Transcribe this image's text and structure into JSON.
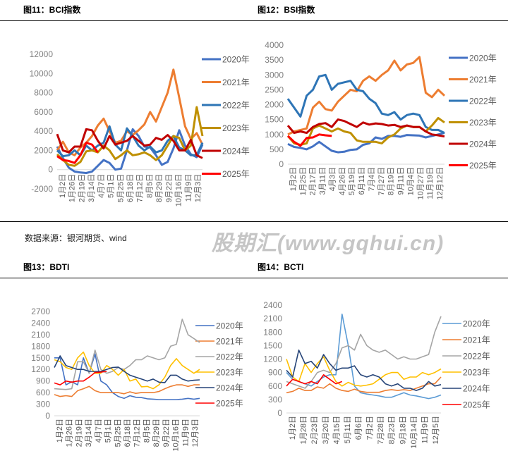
{
  "source_note": "数据来源：银河期货、wind",
  "watermark": "股期汇(www.gqhui.cn)",
  "chart_data": [
    {
      "type": "line",
      "title": "图11：BCI指数",
      "ylim": [
        -2000,
        12000
      ],
      "yticks": [
        -2000,
        0,
        2000,
        4000,
        6000,
        8000,
        10000,
        12000
      ],
      "xticks": [
        "1月2日",
        "1月26日",
        "2月19日",
        "3月14日",
        "4月7日",
        "5月1日",
        "5月25日",
        "6月18日",
        "7月12日",
        "8月5日",
        "8月29日",
        "9月22日",
        "10月16日",
        "11月9日",
        "12月3日"
      ],
      "legend": "right",
      "series": [
        {
          "name": "2020年",
          "color": "#4472C4",
          "values": [
            2400,
            1200,
            200,
            -200,
            -300,
            -350,
            -200,
            400,
            1000,
            700,
            0,
            100,
            2000,
            4200,
            3500,
            2400,
            2300,
            1500,
            500,
            800,
            2200,
            4100,
            2500,
            1600,
            1300,
            2600
          ]
        },
        {
          "name": "2021年",
          "color": "#ED7D31",
          "values": [
            2000,
            2900,
            1800,
            1500,
            2300,
            2800,
            3500,
            4600,
            5300,
            4000,
            2800,
            3000,
            4000,
            3600,
            4100,
            4700,
            6000,
            5000,
            6500,
            8000,
            10400,
            7500,
            4500,
            3200,
            3800,
            2600
          ]
        },
        {
          "name": "2022年",
          "color": "#2E75B6",
          "values": [
            2000,
            1400,
            1500,
            2000,
            1500,
            2500,
            2000,
            2500,
            2800,
            4500,
            2600,
            2000,
            4300,
            3500,
            2500,
            2000,
            2400,
            1800,
            2000,
            3000,
            3500,
            2300,
            2000,
            1500,
            1500,
            2800
          ]
        },
        {
          "name": "2023年",
          "color": "#BF9000",
          "values": [
            1600,
            1000,
            500,
            400,
            800,
            1900,
            2000,
            1800,
            2500,
            2000,
            1100,
            1500,
            2000,
            1500,
            1600,
            1800,
            1500,
            1000,
            1500,
            2500,
            3500,
            3300,
            2000,
            2500,
            6500,
            3500
          ]
        },
        {
          "name": "2024年",
          "color": "#C00000",
          "values": [
            3700,
            2000,
            1800,
            2400,
            2400,
            4200,
            4100,
            3000,
            2200,
            3500,
            2600,
            2800,
            3000,
            3500,
            3000,
            2500,
            2600,
            3300,
            3100,
            3600,
            3000,
            2000,
            2000,
            3100,
            1500,
            1200
          ]
        },
        {
          "name": "2025年",
          "color": "#FF0000",
          "values": [
            1400,
            1000,
            900,
            700,
            1500,
            2800,
            2600,
            1800
          ]
        }
      ]
    },
    {
      "type": "line",
      "title": "图12：BSI指数",
      "ylim": [
        0,
        4000
      ],
      "yticks": [
        0,
        500,
        1000,
        1500,
        2000,
        2500,
        3000,
        3500,
        4000
      ],
      "xticks": [
        "1月2日",
        "1月25日",
        "2月17日",
        "3月11日",
        "4月3日",
        "4月26日",
        "5月19日",
        "6月11日",
        "7月4日",
        "7月27日",
        "8月19日",
        "9月11日",
        "10月4日",
        "10月27日",
        "11月19日",
        "12月12日"
      ],
      "legend": "right",
      "series": [
        {
          "name": "2020年",
          "color": "#4472C4",
          "values": [
            680,
            580,
            550,
            500,
            600,
            750,
            600,
            450,
            400,
            420,
            480,
            500,
            650,
            700,
            900,
            850,
            950,
            950,
            920,
            980,
            970,
            960,
            900,
            950,
            1000,
            1050
          ]
        },
        {
          "name": "2021年",
          "color": "#ED7D31",
          "values": [
            1000,
            1100,
            1150,
            1200,
            1900,
            2100,
            1850,
            1800,
            2100,
            2300,
            2500,
            2450,
            2800,
            2950,
            2800,
            3000,
            3150,
            3480,
            3150,
            3350,
            3400,
            3600,
            2400,
            2250,
            2500,
            2300
          ]
        },
        {
          "name": "2022年",
          "color": "#2E75B6",
          "values": [
            2200,
            1900,
            1600,
            2300,
            2500,
            2950,
            3000,
            2500,
            2700,
            2750,
            2800,
            2500,
            2450,
            2200,
            2050,
            1700,
            1650,
            1750,
            1500,
            1650,
            1700,
            1650,
            1250,
            1150,
            1150,
            1050
          ]
        },
        {
          "name": "2023年",
          "color": "#BF9000",
          "values": [
            950,
            700,
            650,
            700,
            1200,
            1300,
            1200,
            1100,
            1200,
            1100,
            1050,
            800,
            750,
            750,
            750,
            700,
            900,
            1000,
            1200,
            1300,
            1250,
            1250,
            1100,
            1300,
            1550,
            1400
          ]
        },
        {
          "name": "2024年",
          "color": "#C00000",
          "values": [
            1300,
            1050,
            1100,
            1050,
            1250,
            1350,
            1380,
            1250,
            1500,
            1450,
            1350,
            1250,
            1400,
            1330,
            1370,
            1350,
            1300,
            1320,
            1250,
            1300,
            1250,
            1250,
            1100,
            1000,
            970,
            930
          ]
        },
        {
          "name": "2025年",
          "color": "#FF0000",
          "values": [
            950,
            750,
            620,
            880,
            900,
            1000,
            970,
            950
          ]
        }
      ]
    },
    {
      "type": "line",
      "title": "图13：BDTI",
      "ylim": [
        0,
        2700
      ],
      "yticks": [
        0,
        300,
        600,
        900,
        1200,
        1500,
        1800,
        2100,
        2400,
        2700
      ],
      "xticks": [
        "1月2日",
        "1月26日",
        "2月19日",
        "3月14日",
        "4月7日",
        "5月1日",
        "5月25日",
        "6月18日",
        "7月12日",
        "8月5日",
        "8月29日",
        "9月22日",
        "10月16日",
        "11月9日",
        "12月3日"
      ],
      "legend": "right",
      "series": [
        {
          "name": "2020年",
          "color": "#4472C4",
          "values": [
            1500,
            1500,
            800,
            880,
            800,
            1500,
            1100,
            1600,
            900,
            800,
            600,
            500,
            450,
            520,
            480,
            470,
            440,
            430,
            420,
            420,
            420,
            420,
            430,
            450,
            430,
            450
          ]
        },
        {
          "name": "2021年",
          "color": "#ED7D31",
          "values": [
            550,
            500,
            520,
            500,
            650,
            700,
            760,
            650,
            600,
            600,
            600,
            600,
            570,
            620,
            580,
            600,
            600,
            600,
            630,
            700,
            760,
            800,
            800,
            760,
            800,
            800
          ]
        },
        {
          "name": "2022年",
          "color": "#A5A5A5",
          "values": [
            700,
            690,
            680,
            700,
            1400,
            1400,
            1100,
            1700,
            1200,
            1100,
            1150,
            1250,
            1200,
            1300,
            1450,
            1450,
            1550,
            1500,
            1450,
            1500,
            1800,
            1850,
            2500,
            2100,
            2000,
            1900
          ]
        },
        {
          "name": "2023年",
          "color": "#FFC000",
          "values": [
            1450,
            1400,
            1250,
            1200,
            1500,
            1650,
            1300,
            1100,
            1100,
            1300,
            1200,
            1050,
            1200,
            900,
            950,
            750,
            760,
            700,
            800,
            1000,
            1300,
            1480,
            1300,
            1200,
            1100,
            1200
          ]
        },
        {
          "name": "2024年",
          "color": "#264478",
          "values": [
            1250,
            1550,
            1300,
            1250,
            1200,
            1200,
            1150,
            1150,
            1150,
            1200,
            1250,
            1260,
            1150,
            1050,
            1000,
            950,
            900,
            950,
            870,
            860,
            1050,
            1050,
            950,
            900,
            920,
            930
          ]
        },
        {
          "name": "2025年",
          "color": "#FF0000",
          "values": [
            850,
            800,
            900,
            870,
            900,
            900,
            1000,
            1120,
            1130,
            1150
          ]
        }
      ]
    },
    {
      "type": "line",
      "title": "图14：BCTI",
      "ylim": [
        0,
        2400
      ],
      "yticks": [
        0,
        300,
        600,
        900,
        1200,
        1500,
        1800,
        2100,
        2400
      ],
      "xticks": [
        "1月2日",
        "1月28日",
        "2月23日",
        "3月20日",
        "4月15日",
        "5月11日",
        "6月6日",
        "7月2日",
        "7月28日",
        "8月23日",
        "9月18日",
        "10月14日",
        "11月9日",
        "12月5日"
      ],
      "legend": "right",
      "series": [
        {
          "name": "2020年",
          "color": "#5B9BD5",
          "values": [
            900,
            750,
            700,
            650,
            600,
            700,
            800,
            850,
            850,
            2200,
            1500,
            600,
            450,
            420,
            400,
            380,
            350,
            350,
            400,
            450,
            400,
            380,
            350,
            320,
            350,
            400
          ]
        },
        {
          "name": "2021年",
          "color": "#ED7D31",
          "values": [
            450,
            480,
            550,
            500,
            500,
            580,
            550,
            650,
            550,
            500,
            480,
            530,
            480,
            460,
            460,
            460,
            500,
            520,
            500,
            520,
            500,
            550,
            600,
            650,
            650,
            800
          ]
        },
        {
          "name": "2022年",
          "color": "#A5A5A5",
          "values": [
            700,
            650,
            600,
            550,
            700,
            900,
            950,
            900,
            1100,
            1450,
            1500,
            1400,
            1750,
            1500,
            1400,
            1350,
            1400,
            1300,
            1200,
            1250,
            1200,
            1200,
            1250,
            1300,
            1800,
            2150
          ]
        },
        {
          "name": "2023年",
          "color": "#FFC000",
          "values": [
            1200,
            800,
            700,
            1100,
            900,
            1100,
            1250,
            950,
            700,
            600,
            680,
            620,
            600,
            620,
            650,
            750,
            850,
            900,
            900,
            750,
            800,
            800,
            900,
            850,
            900,
            980
          ]
        },
        {
          "name": "2024年",
          "color": "#264478",
          "values": [
            950,
            800,
            1400,
            1100,
            1150,
            1000,
            1300,
            1100,
            950,
            1000,
            1000,
            1050,
            850,
            800,
            850,
            800,
            650,
            600,
            650,
            550,
            550,
            500,
            550,
            700,
            600,
            630
          ]
        },
        {
          "name": "2025年",
          "color": "#FF0000",
          "values": [
            600,
            750,
            700,
            650,
            700,
            650,
            850,
            750,
            650,
            700
          ]
        }
      ]
    }
  ]
}
